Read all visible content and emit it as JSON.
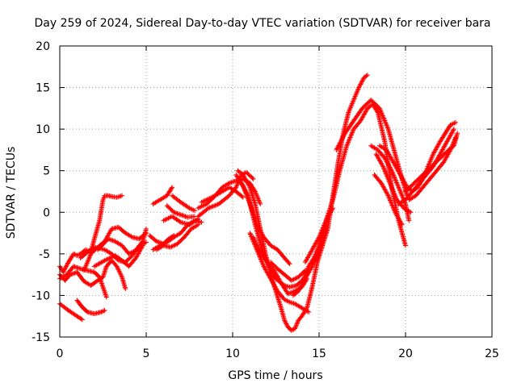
{
  "chart_data": {
    "type": "scatter",
    "title": "Day 259 of 2024, Sidereal Day-to-day VTEC variation (SDTVAR) for receiver bara",
    "xlabel": "GPS time / hours",
    "ylabel": "SDTVAR / TECUs",
    "xlim": [
      0,
      25
    ],
    "ylim": [
      -15,
      20
    ],
    "x_ticks": [
      0,
      5,
      10,
      15,
      20,
      25
    ],
    "y_ticks": [
      -15,
      -10,
      -5,
      0,
      5,
      10,
      15,
      20
    ],
    "grid": true,
    "marker": "+",
    "color": "#ff0000",
    "tracks": [
      {
        "x": [
          0.0,
          0.5,
          1.0,
          1.3
        ],
        "y": [
          -11.0,
          -11.8,
          -12.5,
          -12.9
        ]
      },
      {
        "x": [
          1.0,
          1.3,
          1.6,
          2.0,
          2.4,
          2.6
        ],
        "y": [
          -10.6,
          -11.4,
          -12.0,
          -12.2,
          -12.0,
          -11.8
        ]
      },
      {
        "x": [
          0.0,
          0.2,
          0.5,
          0.8,
          1.0,
          1.2,
          1.5,
          1.8,
          2.0,
          2.3,
          2.5,
          2.6,
          2.8,
          3.0,
          3.3,
          3.6
        ],
        "y": [
          -6.5,
          -7.2,
          -6.0,
          -5.0,
          -5.2,
          -5.0,
          -4.5,
          -4.8,
          -3.2,
          -1.0,
          1.5,
          2.0,
          2.0,
          1.9,
          1.8,
          2.0
        ]
      },
      {
        "x": [
          0.0,
          0.3,
          0.6,
          1.0,
          1.4,
          1.8,
          2.2,
          2.5,
          2.7,
          3.0,
          3.3,
          3.6,
          3.8
        ],
        "y": [
          -7.5,
          -8.2,
          -7.5,
          -7.2,
          -8.3,
          -8.8,
          -8.2,
          -7.8,
          -6.5,
          -5.8,
          -6.5,
          -7.8,
          -9.2
        ]
      },
      {
        "x": [
          0.0,
          0.4,
          0.8,
          1.2,
          1.6,
          2.0,
          2.3,
          2.5,
          2.7
        ],
        "y": [
          -8.0,
          -7.5,
          -6.5,
          -6.8,
          -7.0,
          -7.2,
          -7.8,
          -9.0,
          -10.2
        ]
      },
      {
        "x": [
          1.4,
          1.8,
          2.2,
          2.6,
          3.0,
          3.4,
          3.8,
          4.2,
          4.6,
          5.0
        ],
        "y": [
          -7.0,
          -5.0,
          -4.2,
          -3.5,
          -2.0,
          -1.8,
          -2.5,
          -3.0,
          -3.2,
          -2.5
        ]
      },
      {
        "x": [
          2.2,
          2.8,
          3.2,
          3.6,
          4.0,
          4.4,
          4.8,
          5.0
        ],
        "y": [
          -4.5,
          -3.2,
          -3.5,
          -4.0,
          -5.0,
          -4.6,
          -3.5,
          -2.0
        ]
      },
      {
        "x": [
          1.2,
          1.6,
          2.0,
          2.6,
          3.0,
          3.4,
          3.8,
          4.2,
          4.6,
          5.0
        ],
        "y": [
          -5.5,
          -4.8,
          -4.2,
          -4.5,
          -5.0,
          -5.8,
          -6.0,
          -5.2,
          -4.0,
          -3.6
        ]
      },
      {
        "x": [
          2.0,
          2.6,
          3.2,
          3.6,
          4.0,
          4.4,
          4.8
        ],
        "y": [
          -6.5,
          -5.8,
          -5.2,
          -5.8,
          -6.5,
          -5.5,
          -4.0
        ]
      },
      {
        "x": [
          5.2,
          5.6,
          6.0,
          6.3,
          6.6
        ],
        "y": [
          -2.8,
          -3.5,
          -3.8,
          -3.2,
          -2.8
        ]
      },
      {
        "x": [
          5.4,
          5.8,
          6.2,
          6.5
        ],
        "y": [
          1.0,
          1.5,
          2.0,
          3.0
        ]
      },
      {
        "x": [
          5.4,
          5.8,
          6.2,
          6.6,
          7.0,
          7.4,
          7.8,
          8.2
        ],
        "y": [
          -4.5,
          -4.0,
          -3.6,
          -3.0,
          -2.5,
          -1.5,
          -1.0,
          -1.2
        ]
      },
      {
        "x": [
          5.6,
          6.0,
          6.4,
          6.8,
          7.2,
          7.6,
          8.0
        ],
        "y": [
          -4.5,
          -4.0,
          -4.2,
          -3.8,
          -3.0,
          -2.0,
          -1.5
        ]
      },
      {
        "x": [
          6.0,
          6.5,
          7.0,
          7.5,
          8.0
        ],
        "y": [
          -1.0,
          -0.5,
          -1.2,
          -1.5,
          -0.8
        ]
      },
      {
        "x": [
          6.2,
          6.6,
          7.0,
          7.4,
          7.8
        ],
        "y": [
          0.8,
          0.0,
          -0.3,
          -0.6,
          -0.5
        ]
      },
      {
        "x": [
          6.5,
          7.0,
          7.5,
          7.8
        ],
        "y": [
          2.0,
          1.2,
          0.5,
          0.2
        ]
      },
      {
        "x": [
          8.0,
          8.5,
          9.0,
          9.4,
          9.8,
          10.2,
          10.6,
          11.0,
          11.3,
          11.6
        ],
        "y": [
          0.5,
          1.0,
          2.0,
          3.0,
          3.5,
          3.8,
          4.0,
          3.5,
          2.5,
          1.0
        ]
      },
      {
        "x": [
          8.0,
          8.6,
          9.2,
          9.8,
          10.2,
          10.5,
          10.8,
          11.2
        ],
        "y": [
          -0.5,
          0.5,
          1.0,
          2.0,
          3.0,
          4.5,
          4.8,
          4.0
        ]
      },
      {
        "x": [
          8.2,
          8.8,
          9.4,
          9.8,
          10.2,
          10.6
        ],
        "y": [
          1.2,
          1.8,
          2.5,
          3.0,
          2.5,
          1.8
        ]
      },
      {
        "x": [
          10.3,
          10.6,
          11.0,
          11.3,
          11.6,
          11.9,
          12.2,
          12.5,
          12.8,
          13.0,
          13.2,
          13.4,
          13.6,
          13.8,
          14.0,
          14.3,
          14.6,
          14.9,
          15.2,
          15.5,
          15.8,
          16.1,
          16.4,
          16.7,
          17.0,
          17.3,
          17.6,
          17.8
        ],
        "y": [
          5.0,
          4.5,
          3.0,
          1.0,
          -2.0,
          -5.0,
          -7.5,
          -9.5,
          -11.5,
          -13.0,
          -13.8,
          -14.2,
          -14.0,
          -13.0,
          -12.5,
          -11.5,
          -9.0,
          -6.0,
          -4.0,
          -2.0,
          2.0,
          6.0,
          9.5,
          12.0,
          13.5,
          15.0,
          16.2,
          16.5
        ]
      },
      {
        "x": [
          10.5,
          10.9,
          11.3,
          11.7,
          12.1,
          12.5,
          12.8,
          13.0,
          13.3,
          13.7,
          14.1,
          14.4,
          14.7,
          15.1,
          15.4,
          15.8,
          16.2,
          16.6,
          17.0,
          17.4,
          17.8,
          18.1,
          18.4,
          18.8,
          19.2,
          19.6,
          20.0
        ],
        "y": [
          3.5,
          2.0,
          -1.5,
          -4.5,
          -6.5,
          -8.0,
          -8.5,
          -8.8,
          -9.0,
          -8.8,
          -8.0,
          -6.5,
          -5.5,
          -3.5,
          -1.0,
          1.5,
          5.0,
          8.0,
          10.0,
          11.0,
          12.5,
          13.0,
          12.0,
          8.5,
          3.0,
          -1.0,
          -4.0
        ]
      },
      {
        "x": [
          11.0,
          11.4,
          11.8,
          12.2,
          12.6,
          13.0,
          13.3,
          13.6,
          14.0,
          14.4
        ],
        "y": [
          -2.5,
          -4.5,
          -6.5,
          -8.0,
          -9.5,
          -10.5,
          -10.8,
          -11.0,
          -11.5,
          -12.0
        ]
      },
      {
        "x": [
          11.2,
          11.6,
          12.0,
          12.4,
          12.8,
          13.2,
          13.6,
          14.0,
          14.3
        ],
        "y": [
          -3.0,
          -5.0,
          -6.0,
          -7.0,
          -8.5,
          -9.8,
          -9.5,
          -9.0,
          -8.0
        ]
      },
      {
        "x": [
          10.2,
          10.6,
          11.0,
          11.4,
          11.8,
          12.2,
          12.6,
          13.0,
          13.3
        ],
        "y": [
          4.5,
          3.2,
          1.0,
          -1.5,
          -3.0,
          -4.0,
          -4.5,
          -5.5,
          -6.2
        ]
      },
      {
        "x": [
          12.2,
          12.6,
          13.0,
          13.4,
          13.8,
          14.2
        ],
        "y": [
          -6.0,
          -6.8,
          -7.5,
          -8.2,
          -7.8,
          -7.0
        ]
      },
      {
        "x": [
          13.5,
          13.8,
          14.2,
          14.6,
          15.0,
          15.4
        ],
        "y": [
          -10.0,
          -9.5,
          -8.0,
          -6.5,
          -4.5,
          -1.5
        ]
      },
      {
        "x": [
          14.2,
          14.6,
          15.0,
          15.4,
          15.8
        ],
        "y": [
          -6.0,
          -4.5,
          -3.0,
          -1.0,
          0.5
        ]
      },
      {
        "x": [
          16.0,
          16.5,
          17.0,
          17.5,
          18.0,
          18.5,
          19.0,
          19.4,
          19.8,
          20.1
        ],
        "y": [
          7.5,
          9.5,
          11.0,
          12.5,
          13.5,
          12.5,
          10.0,
          7.0,
          4.0,
          2.0
        ]
      },
      {
        "x": [
          18.0,
          18.4,
          18.8,
          19.2,
          19.6,
          20.0,
          20.2
        ],
        "y": [
          8.0,
          7.5,
          6.5,
          5.0,
          3.0,
          1.0,
          -1.0
        ]
      },
      {
        "x": [
          18.3,
          18.7,
          19.1,
          19.5,
          19.9,
          20.3
        ],
        "y": [
          7.0,
          5.5,
          3.5,
          1.5,
          0.5,
          0.0
        ]
      },
      {
        "x": [
          18.2,
          18.6,
          19.0,
          19.4,
          19.8
        ],
        "y": [
          4.5,
          3.5,
          2.0,
          0.0,
          -1.5
        ]
      },
      {
        "x": [
          18.5,
          18.9,
          19.3,
          19.7,
          20.1,
          20.4,
          20.7,
          21.0,
          21.3,
          21.6,
          22.0,
          22.3,
          22.6,
          22.9
        ],
        "y": [
          8.0,
          7.5,
          6.0,
          4.5,
          3.0,
          2.5,
          3.0,
          4.0,
          5.5,
          7.0,
          8.5,
          9.5,
          10.5,
          10.8
        ]
      },
      {
        "x": [
          19.6,
          20.0,
          20.4,
          20.8,
          21.2,
          21.6,
          22.0,
          22.4,
          22.8
        ],
        "y": [
          1.0,
          1.5,
          2.5,
          3.5,
          4.5,
          5.5,
          7.0,
          8.5,
          10.0
        ]
      },
      {
        "x": [
          20.0,
          20.5,
          21.0,
          21.5,
          22.0,
          22.5,
          22.8,
          23.0
        ],
        "y": [
          2.5,
          3.5,
          4.5,
          5.5,
          6.5,
          7.5,
          8.0,
          9.5
        ]
      },
      {
        "x": [
          20.2,
          20.6,
          21.0,
          21.4,
          21.8,
          22.2,
          22.6,
          22.9
        ],
        "y": [
          1.5,
          2.0,
          3.0,
          4.0,
          5.0,
          6.0,
          7.5,
          9.0
        ]
      }
    ]
  }
}
